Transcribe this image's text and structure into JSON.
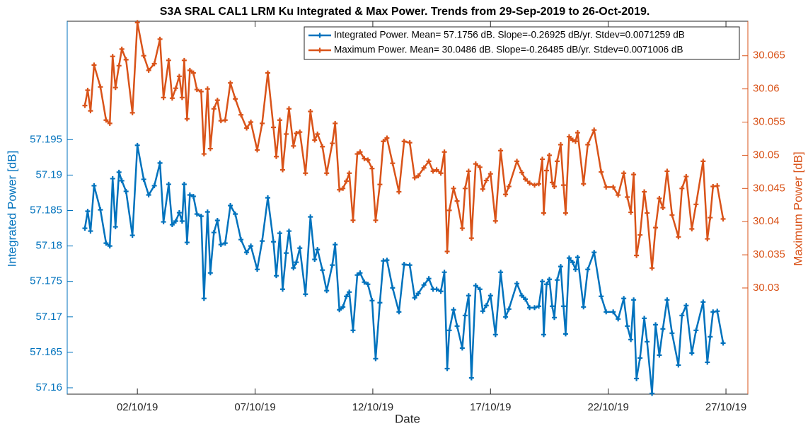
{
  "chart_data": {
    "type": "line",
    "title": "S3A SRAL CAL1 LRM Ku Integrated & Max Power. Trends from 29-Sep-2019 to 26-Oct-2019.",
    "xlabel": "Date",
    "ylabel": "Integrated Power [dB]",
    "y2label": "Maximum Power [dB]",
    "legend": "northeast",
    "grid": false,
    "xlim": [
      -0.98,
      27.93
    ],
    "xticks": [
      {
        "value": 2,
        "label": "02/10/19"
      },
      {
        "value": 7,
        "label": "07/10/19"
      },
      {
        "value": 12,
        "label": "12/10/19"
      },
      {
        "value": 17,
        "label": "17/10/19"
      },
      {
        "value": 22,
        "label": "22/10/19"
      },
      {
        "value": 27,
        "label": "27/10/19"
      }
    ],
    "ylim": [
      57.1591,
      57.2117
    ],
    "yticks": [
      57.16,
      57.165,
      57.17,
      57.175,
      57.18,
      57.185,
      57.19,
      57.195
    ],
    "y2lim": [
      30.014,
      30.0702
    ],
    "y2ticks": [
      30.03,
      30.035,
      30.04,
      30.045,
      30.05,
      30.055,
      30.06,
      30.065
    ],
    "x": [
      -0.23,
      -0.11,
      0.01,
      0.16,
      0.43,
      0.67,
      0.83,
      0.95,
      1.07,
      1.22,
      1.34,
      1.52,
      1.79,
      2.0,
      2.27,
      2.48,
      2.72,
      2.96,
      3.11,
      3.33,
      3.48,
      3.63,
      3.78,
      3.9,
      3.99,
      4.11,
      4.23,
      4.38,
      4.53,
      4.71,
      4.83,
      4.98,
      5.1,
      5.25,
      5.4,
      5.55,
      5.73,
      5.95,
      6.16,
      6.4,
      6.64,
      6.82,
      7.09,
      7.3,
      7.54,
      7.78,
      7.9,
      8.05,
      8.17,
      8.32,
      8.44,
      8.63,
      8.75,
      8.9,
      9.14,
      9.35,
      9.53,
      9.65,
      9.86,
      10.04,
      10.28,
      10.4,
      10.58,
      10.73,
      10.88,
      11.0,
      11.16,
      11.34,
      11.46,
      11.64,
      11.79,
      11.97,
      12.12,
      12.3,
      12.45,
      12.6,
      12.84,
      13.11,
      13.33,
      13.57,
      13.78,
      13.93,
      14.17,
      14.38,
      14.56,
      14.71,
      14.89,
      15.04,
      15.16,
      15.25,
      15.43,
      15.58,
      15.8,
      15.92,
      16.07,
      16.19,
      16.37,
      16.55,
      16.67,
      16.82,
      17.0,
      17.21,
      17.43,
      17.64,
      17.78,
      18.12,
      18.33,
      18.48,
      18.66,
      18.87,
      19.05,
      19.2,
      19.26,
      19.38,
      19.5,
      19.62,
      19.71,
      19.83,
      19.98,
      20.1,
      20.19,
      20.34,
      20.49,
      20.61,
      20.7,
      20.95,
      21.13,
      21.4,
      21.7,
      21.91,
      22.21,
      22.42,
      22.66,
      22.81,
      22.96,
      23.08,
      23.2,
      23.35,
      23.53,
      23.65,
      23.86,
      24.01,
      24.17,
      24.32,
      24.5,
      24.71,
      24.98,
      25.13,
      25.31,
      25.55,
      25.73,
      26.03,
      26.21,
      26.33,
      26.45,
      26.63,
      26.88
    ],
    "series": [
      {
        "name": "Integrated Power. Mean= 57.1756 dB. Slope=-0.26925 dB/yr. Stdev=0.0071259 dB",
        "color": "#0072BD",
        "axis": "y",
        "values": [
          57.1825,
          57.1849,
          57.1821,
          57.1885,
          57.1851,
          57.1804,
          57.18,
          57.1895,
          57.1827,
          57.1904,
          57.1892,
          57.1877,
          57.1815,
          57.1942,
          57.1894,
          57.1872,
          57.1885,
          57.1917,
          57.1834,
          57.1887,
          57.183,
          57.1835,
          57.1847,
          57.1835,
          57.1887,
          57.1805,
          57.1872,
          57.187,
          57.1845,
          57.1842,
          57.1726,
          57.1848,
          57.1762,
          57.1819,
          57.1836,
          57.1802,
          57.1804,
          57.1857,
          57.1845,
          57.1809,
          57.1791,
          57.18,
          57.1767,
          57.1807,
          57.1868,
          57.1806,
          57.1758,
          57.1818,
          57.1739,
          57.179,
          57.1821,
          57.1769,
          57.1777,
          57.1797,
          57.1732,
          57.1841,
          57.1781,
          57.1795,
          57.1766,
          57.1737,
          57.1773,
          57.1802,
          57.171,
          57.1714,
          57.1729,
          57.1735,
          57.1681,
          57.1759,
          57.1762,
          57.1749,
          57.1746,
          57.1723,
          57.1641,
          57.172,
          57.1779,
          57.178,
          57.1741,
          57.1707,
          57.1774,
          57.1773,
          57.1727,
          57.1733,
          57.1745,
          57.1754,
          57.1739,
          57.1739,
          57.1736,
          57.1763,
          57.1627,
          57.1681,
          57.171,
          57.1687,
          57.1656,
          57.1702,
          57.173,
          57.1614,
          57.1744,
          57.1739,
          57.1708,
          57.1716,
          57.173,
          57.1675,
          57.1763,
          57.17,
          57.1711,
          57.1747,
          57.173,
          57.1725,
          57.1713,
          57.1713,
          57.1715,
          57.175,
          57.1675,
          57.1746,
          57.1753,
          57.1715,
          57.1699,
          57.1752,
          57.1771,
          57.1715,
          57.1676,
          57.1783,
          57.1777,
          57.1767,
          57.1784,
          57.1714,
          57.1767,
          57.1791,
          57.1729,
          57.1707,
          57.1707,
          57.1697,
          57.1726,
          57.1687,
          57.1668,
          57.1724,
          57.1613,
          57.1642,
          57.1698,
          57.1665,
          57.1592,
          57.1689,
          57.1646,
          57.1683,
          57.1724,
          57.1677,
          57.1632,
          57.1702,
          57.1716,
          57.1649,
          57.1681,
          57.1721,
          57.1636,
          57.1672,
          57.1707,
          57.1708,
          57.1663
        ]
      },
      {
        "name": "Maximum Power.  Mean= 30.0486 dB. Slope=-0.26485 dB/yr. Stdev=0.0071006 dB",
        "color": "#D95319",
        "axis": "y2",
        "values": [
          30.0575,
          30.0598,
          30.0567,
          30.0636,
          30.0603,
          30.0553,
          30.0548,
          30.0649,
          30.0602,
          30.0635,
          30.066,
          30.0644,
          30.0564,
          30.07,
          30.065,
          30.0628,
          30.0638,
          30.0675,
          30.0587,
          30.0643,
          30.0586,
          30.0601,
          30.0619,
          30.0587,
          30.0643,
          30.0555,
          30.0628,
          30.0624,
          30.0599,
          30.0596,
          30.0502,
          30.06,
          30.051,
          30.057,
          30.0583,
          30.0552,
          30.0553,
          30.0609,
          30.0585,
          30.0561,
          30.0541,
          30.055,
          30.0508,
          30.0548,
          30.0624,
          30.0542,
          30.0498,
          30.0553,
          30.0478,
          30.0532,
          30.057,
          30.0514,
          30.0533,
          30.0535,
          30.0473,
          30.0566,
          30.0523,
          30.0532,
          30.0513,
          30.0473,
          30.0518,
          30.0548,
          30.0448,
          30.045,
          30.0461,
          30.0473,
          30.0402,
          30.0502,
          30.0505,
          30.0495,
          30.0493,
          30.048,
          30.0402,
          30.0456,
          30.0521,
          30.0526,
          30.0488,
          30.0445,
          30.0521,
          30.0519,
          30.0466,
          30.0469,
          30.0481,
          30.0491,
          30.0476,
          30.0478,
          30.0473,
          30.0505,
          30.0355,
          30.0417,
          30.045,
          30.0431,
          30.039,
          30.045,
          30.0476,
          30.0375,
          30.0487,
          30.0482,
          30.0449,
          30.0462,
          30.0472,
          30.0401,
          30.0507,
          30.0441,
          30.0453,
          30.0491,
          30.0474,
          30.0464,
          30.0458,
          30.0455,
          30.0457,
          30.0494,
          30.0413,
          30.0477,
          30.05,
          30.0459,
          30.0453,
          30.0491,
          30.0516,
          30.0455,
          30.0413,
          30.0528,
          30.0523,
          30.0521,
          30.0534,
          30.0457,
          30.0516,
          30.0538,
          30.0475,
          30.0452,
          30.0452,
          30.044,
          30.0473,
          30.0437,
          30.0414,
          30.0471,
          30.0349,
          30.038,
          30.0445,
          30.0413,
          30.033,
          30.0391,
          30.0435,
          30.0421,
          30.0476,
          30.041,
          30.0377,
          30.045,
          30.0468,
          30.0389,
          30.0426,
          30.0491,
          30.0374,
          30.0406,
          30.0453,
          30.0454,
          30.0404
        ]
      }
    ]
  }
}
